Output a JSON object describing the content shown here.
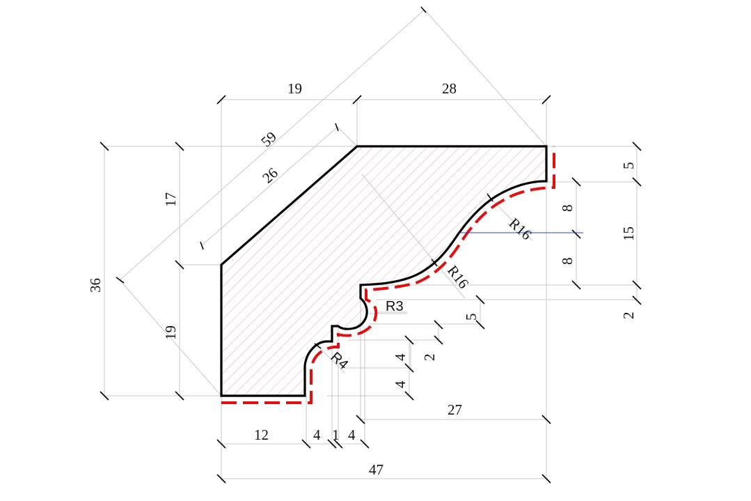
{
  "dimensions": {
    "top_left_width": "19",
    "top_right_width": "28",
    "diag_outer": "59",
    "diag_inner": "26",
    "left_upper_height": "17",
    "left_total_height": "36",
    "left_lower_height": "19",
    "right_top": "5",
    "right_arc_upper": "8",
    "right_arc_total": "15",
    "right_arc_lower": "8",
    "right_small": "2",
    "mid_step": "5",
    "step_a": "4",
    "step_b": "2",
    "step_c": "4",
    "bottom_span": "27",
    "bottom_12": "12",
    "bottom_4a": "4",
    "bottom_1": "1",
    "bottom_4b": "4",
    "bottom_total": "47"
  },
  "radii": {
    "r16_upper": "R16",
    "r16_lower": "R16",
    "r3": "R3",
    "r4": "R4"
  },
  "colors": {
    "outline": "#000000",
    "offset_line": "#e01010",
    "hatch": "#d8a8a8",
    "dimension": "#c8c8c8",
    "guide": "#2d3fd0"
  }
}
